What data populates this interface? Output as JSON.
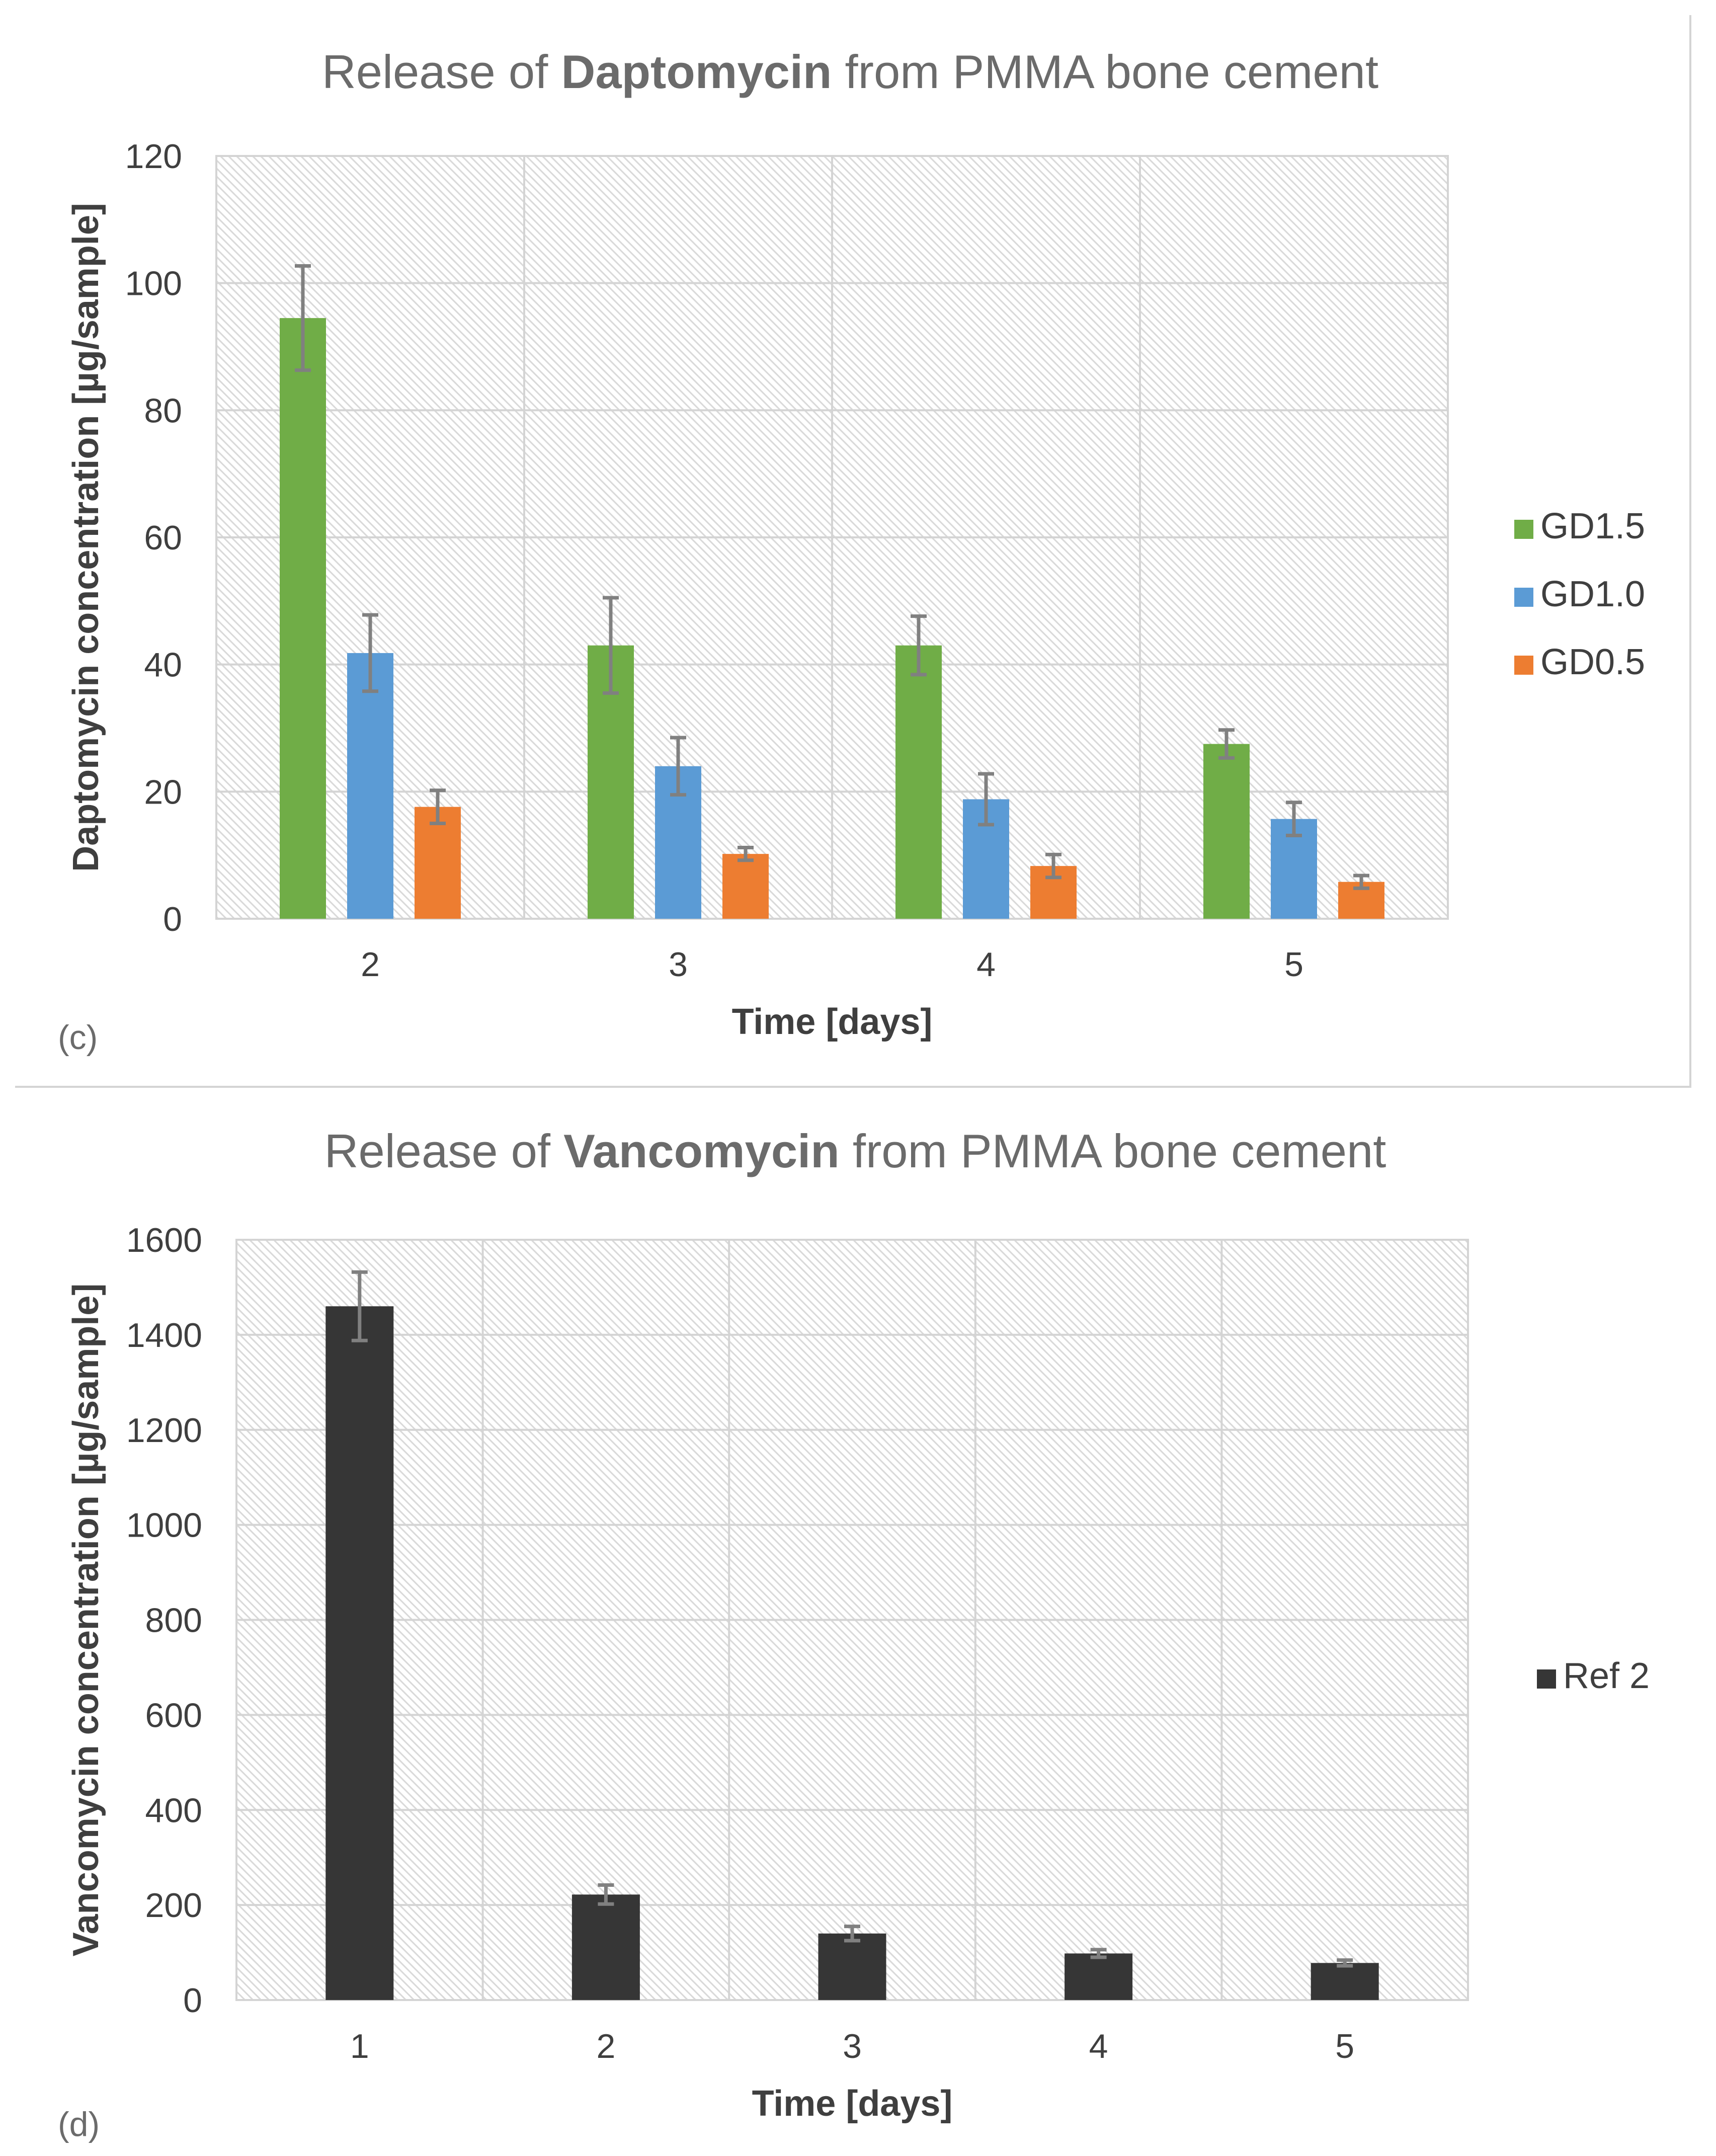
{
  "chart_data": [
    {
      "type": "bar",
      "panel_label": "(c)",
      "title_prefix": "Release of ",
      "title_bold": "Daptomycin",
      "title_suffix": " from PMMA bone cement",
      "xlabel": "Time [days]",
      "ylabel": "Daptomycin concentration [µg/sample]",
      "ylim": [
        0,
        120
      ],
      "yticks": [
        0,
        20,
        40,
        60,
        80,
        100,
        120
      ],
      "categories": [
        "2",
        "3",
        "4",
        "5"
      ],
      "series": [
        {
          "name": "GD1.5",
          "color": "#70ad47",
          "values": [
            94.5,
            43,
            43,
            27.5
          ],
          "errors": [
            8.2,
            7.5,
            4.6,
            2.2
          ]
        },
        {
          "name": "GD1.0",
          "color": "#5b9bd5",
          "values": [
            41.8,
            24,
            18.8,
            15.7
          ],
          "errors": [
            6.0,
            4.5,
            4.0,
            2.6
          ]
        },
        {
          "name": "GD0.5",
          "color": "#ed7d31",
          "values": [
            17.6,
            10.2,
            8.3,
            5.8
          ],
          "errors": [
            2.6,
            1.0,
            1.8,
            1.0
          ]
        }
      ],
      "grid": true,
      "legend": "right"
    },
    {
      "type": "bar",
      "panel_label": "(d)",
      "title_prefix": "Release of ",
      "title_bold": "Vancomycin",
      "title_suffix": " from PMMA bone cement",
      "xlabel": "Time [days]",
      "ylabel": "Vancomycin concentration [µg/sample]",
      "ylim": [
        0,
        1600
      ],
      "yticks": [
        0,
        200,
        400,
        600,
        800,
        1000,
        1200,
        1400,
        1600
      ],
      "categories": [
        "1",
        "2",
        "3",
        "4",
        "5"
      ],
      "series": [
        {
          "name": "Ref 2",
          "color": "#363636",
          "values": [
            1460,
            222,
            140,
            98,
            78
          ],
          "errors": [
            72,
            20,
            15,
            8,
            6
          ]
        }
      ],
      "grid": true,
      "legend": "right"
    }
  ]
}
